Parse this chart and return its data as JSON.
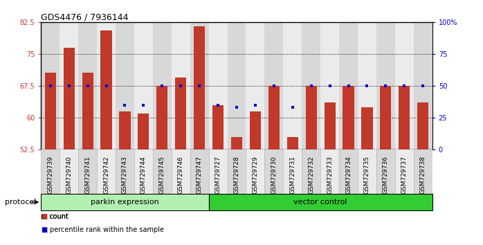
{
  "title": "GDS4476 / 7936144",
  "samples": [
    "GSM729739",
    "GSM729740",
    "GSM729741",
    "GSM729742",
    "GSM729743",
    "GSM729744",
    "GSM729745",
    "GSM729746",
    "GSM729747",
    "GSM729727",
    "GSM729728",
    "GSM729729",
    "GSM729730",
    "GSM729731",
    "GSM729732",
    "GSM729733",
    "GSM729734",
    "GSM729735",
    "GSM729736",
    "GSM729737",
    "GSM729738"
  ],
  "counts": [
    70.5,
    76.5,
    70.5,
    80.5,
    61.5,
    61.0,
    67.5,
    69.5,
    81.5,
    63.0,
    55.5,
    61.5,
    67.5,
    55.5,
    67.5,
    63.5,
    67.5,
    62.5,
    67.5,
    67.5,
    63.5
  ],
  "percentile_ranks_pct": [
    50,
    50,
    50,
    50,
    35,
    35,
    50,
    50,
    50,
    35,
    33,
    35,
    50,
    33,
    50,
    50,
    50,
    50,
    50,
    50,
    50
  ],
  "parkin_count": 9,
  "vector_count": 12,
  "y_min": 52.5,
  "y_max": 82.5,
  "y_ticks": [
    52.5,
    60,
    67.5,
    75,
    82.5
  ],
  "right_y_ticks": [
    0,
    25,
    50,
    75,
    100
  ],
  "bar_color": "#C0392B",
  "dot_color": "#0000CC",
  "parkin_bg": "#b2f0b2",
  "vector_bg": "#33cc33",
  "protocol_label": "protocol",
  "parkin_label": "parkin expression",
  "vector_label": "vector control",
  "legend_count_label": "count",
  "legend_pct_label": "percentile rank within the sample",
  "title_fontsize": 9,
  "tick_fontsize": 7,
  "label_fontsize": 8
}
